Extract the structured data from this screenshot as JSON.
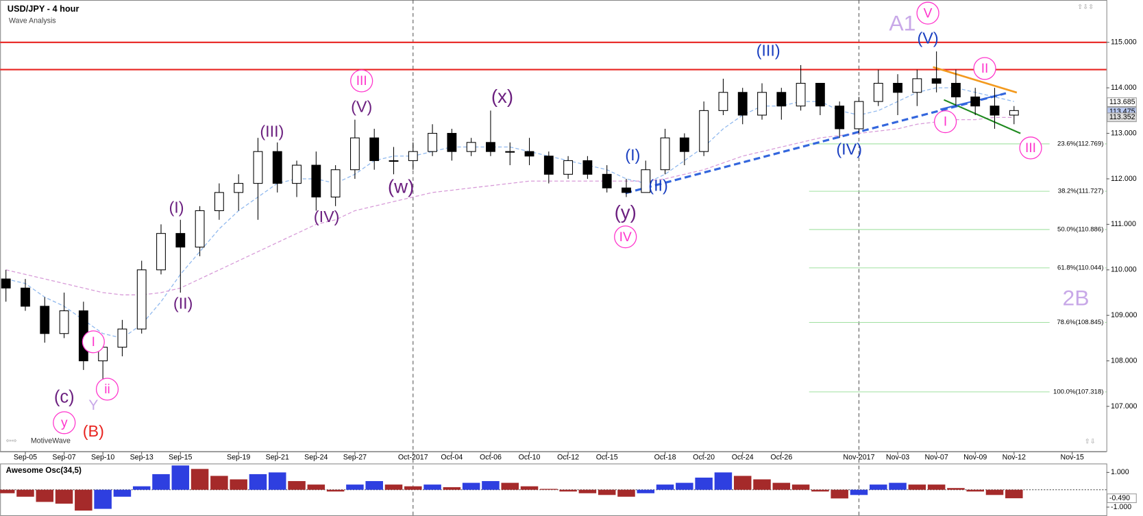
{
  "chart_data": {
    "type": "candlestick",
    "title": "USD/JPY - 4 hour",
    "subtitle": "Wave Analysis",
    "watermark": "MotiveWave",
    "categories": [
      null,
      "Sep-05",
      null,
      "Sep-07",
      null,
      "Sep-10",
      null,
      "Sep-13",
      null,
      "Sep-15",
      null,
      null,
      "Sep-19",
      null,
      "Sep-21",
      null,
      "Sep-24",
      null,
      "Sep-27",
      null,
      null,
      "Oct-2017",
      null,
      "Oct-04",
      null,
      "Oct-06",
      null,
      "Oct-10",
      null,
      "Oct-12",
      null,
      "Oct-15",
      null,
      null,
      "Oct-18",
      null,
      "Oct-20",
      null,
      "Oct-24",
      null,
      "Oct-26",
      null,
      null,
      null,
      "Nov-2017",
      null,
      "Nov-03",
      null,
      "Nov-07",
      null,
      "Nov-09",
      null,
      "Nov-12",
      null,
      null,
      "Nov-15"
    ],
    "ohlc": [
      [
        109.8,
        110.0,
        109.3,
        109.6
      ],
      [
        109.6,
        109.8,
        109.1,
        109.2
      ],
      [
        109.2,
        109.4,
        108.4,
        108.6
      ],
      [
        108.6,
        109.5,
        108.5,
        109.1
      ],
      [
        109.1,
        109.3,
        107.8,
        108.0
      ],
      [
        108.0,
        108.5,
        107.2,
        108.3
      ],
      [
        108.3,
        108.9,
        108.1,
        108.7
      ],
      [
        108.7,
        110.2,
        108.6,
        110.0
      ],
      [
        110.0,
        111.0,
        109.9,
        110.8
      ],
      [
        110.8,
        111.1,
        109.5,
        110.5
      ],
      [
        110.5,
        111.4,
        110.3,
        111.3
      ],
      [
        111.3,
        111.9,
        111.1,
        111.7
      ],
      [
        111.7,
        112.1,
        111.3,
        111.9
      ],
      [
        111.9,
        112.9,
        111.1,
        112.6
      ],
      [
        112.6,
        112.8,
        111.7,
        111.9
      ],
      [
        111.9,
        112.4,
        111.6,
        112.3
      ],
      [
        112.3,
        112.6,
        111.3,
        111.6
      ],
      [
        111.6,
        112.3,
        111.4,
        112.2
      ],
      [
        112.2,
        113.3,
        112.0,
        112.9
      ],
      [
        112.9,
        113.1,
        112.2,
        112.4
      ],
      [
        112.4,
        112.7,
        112.1,
        112.4
      ],
      [
        112.4,
        112.8,
        112.2,
        112.6
      ],
      [
        112.6,
        113.2,
        112.5,
        113.0
      ],
      [
        113.0,
        113.1,
        112.4,
        112.6
      ],
      [
        112.6,
        112.9,
        112.5,
        112.8
      ],
      [
        112.8,
        113.5,
        112.5,
        112.6
      ],
      [
        112.6,
        112.8,
        112.3,
        112.6
      ],
      [
        112.6,
        112.9,
        112.3,
        112.5
      ],
      [
        112.5,
        112.6,
        111.9,
        112.1
      ],
      [
        112.1,
        112.5,
        112.0,
        112.4
      ],
      [
        112.4,
        112.5,
        112.0,
        112.1
      ],
      [
        112.1,
        112.3,
        111.7,
        111.8
      ],
      [
        111.8,
        112.0,
        111.6,
        111.7
      ],
      [
        111.7,
        112.4,
        111.7,
        112.2
      ],
      [
        112.2,
        113.1,
        112.1,
        112.9
      ],
      [
        112.9,
        113.0,
        112.3,
        112.6
      ],
      [
        112.6,
        113.7,
        112.5,
        113.5
      ],
      [
        113.5,
        114.2,
        113.4,
        113.9
      ],
      [
        113.9,
        114.0,
        113.2,
        113.4
      ],
      [
        113.4,
        114.1,
        113.3,
        113.9
      ],
      [
        113.9,
        114.0,
        113.3,
        113.6
      ],
      [
        113.6,
        114.5,
        113.5,
        114.1
      ],
      [
        114.1,
        114.1,
        113.4,
        113.6
      ],
      [
        113.6,
        113.7,
        112.9,
        113.1
      ],
      [
        113.1,
        113.8,
        113.0,
        113.7
      ],
      [
        113.7,
        114.4,
        113.6,
        114.1
      ],
      [
        114.1,
        114.3,
        113.4,
        113.9
      ],
      [
        113.9,
        114.4,
        113.6,
        114.2
      ],
      [
        114.2,
        114.8,
        113.9,
        114.1
      ],
      [
        114.1,
        114.4,
        113.6,
        113.8
      ],
      [
        113.8,
        114.0,
        113.4,
        113.6
      ],
      [
        113.6,
        114.0,
        113.1,
        113.4
      ],
      [
        113.4,
        113.6,
        113.2,
        113.5
      ],
      null,
      null,
      null
    ],
    "moving_averages": [
      {
        "color": "#8fb8ee",
        "values": [
          109.8,
          109.7,
          109.4,
          109.2,
          108.9,
          108.6,
          108.5,
          108.8,
          109.3,
          109.9,
          110.4,
          110.9,
          111.3,
          111.6,
          111.9,
          112.0,
          112.0,
          111.9,
          112.1,
          112.4,
          112.5,
          112.5,
          112.6,
          112.7,
          112.7,
          112.7,
          112.7,
          112.6,
          112.5,
          112.4,
          112.3,
          112.2,
          112.0,
          111.9,
          112.1,
          112.4,
          112.7,
          113.1,
          113.4,
          113.6,
          113.6,
          113.7,
          113.7,
          113.5,
          113.4,
          113.5,
          113.7,
          113.9,
          114.0,
          114.0,
          113.9,
          113.8,
          113.7,
          null,
          null,
          null
        ]
      },
      {
        "color": "#d79ad8",
        "values": [
          110.0,
          109.9,
          109.8,
          109.7,
          109.6,
          109.5,
          109.45,
          109.45,
          109.5,
          109.6,
          109.8,
          110.0,
          110.2,
          110.4,
          110.6,
          110.8,
          111.0,
          111.1,
          111.3,
          111.4,
          111.5,
          111.6,
          111.7,
          111.75,
          111.8,
          111.85,
          111.9,
          111.95,
          111.95,
          111.95,
          111.95,
          111.95,
          111.95,
          111.95,
          112.0,
          112.1,
          112.2,
          112.35,
          112.5,
          112.6,
          112.7,
          112.8,
          112.9,
          112.95,
          113.0,
          113.05,
          113.1,
          113.2,
          113.25,
          113.3,
          113.3,
          113.35,
          113.35,
          null,
          null,
          null
        ]
      }
    ],
    "ylim": [
      106.0,
      115.93
    ],
    "yticks": [
      {
        "value": 107,
        "label": "107.000"
      },
      {
        "value": 108,
        "label": "108.000"
      },
      {
        "value": 109,
        "label": "109.000"
      },
      {
        "value": 110,
        "label": "110.000"
      },
      {
        "value": 111,
        "label": "111.000"
      },
      {
        "value": 112,
        "label": "112.000"
      },
      {
        "value": 113,
        "label": "113.000"
      },
      {
        "value": 114,
        "label": "114.000"
      },
      {
        "value": 115,
        "label": "115.000"
      }
    ],
    "horizontal_levels": {
      "color": "#e8231f",
      "values": [
        115.0,
        114.4
      ]
    },
    "fib_levels": {
      "color": "#9fe09f",
      "values": [
        {
          "value": 112.769,
          "label": "23.6%(112.769)"
        },
        {
          "value": 111.727,
          "label": "38.2%(111.727)"
        },
        {
          "value": 110.886,
          "label": "50.0%(110.886)"
        },
        {
          "value": 110.044,
          "label": "61.8%(110.044)"
        },
        {
          "value": 108.845,
          "label": "78.6%(108.845)"
        },
        {
          "value": 107.318,
          "label": "100.0%(107.318)"
        }
      ]
    },
    "price_markers": [
      {
        "value": 113.685,
        "label": "113.685",
        "color": "#ffffff"
      },
      {
        "value": 113.475,
        "label": "113.475",
        "color": "#b8c8f0"
      },
      {
        "value": 113.352,
        "label": "113.352",
        "color": "#dddddd"
      }
    ],
    "annotations": [
      {
        "text": "A1",
        "color": "#c8a8e8",
        "circled": false
      },
      {
        "text": "V",
        "color": "#ff33cc",
        "circled": true
      },
      {
        "text": "(V)",
        "color": "#1a3fc0",
        "circled": false
      },
      {
        "text": "(III)",
        "color": "#1a3fc0",
        "circled": false
      },
      {
        "text": "II",
        "color": "#ff33cc",
        "circled": true
      },
      {
        "text": "I",
        "color": "#ff33cc",
        "circled": true
      },
      {
        "text": "III",
        "color": "#ff33cc",
        "circled": true
      },
      {
        "text": "(IV)",
        "color": "#1a3fc0",
        "circled": false
      },
      {
        "text": "(I)",
        "color": "#1a3fc0",
        "circled": false
      },
      {
        "text": "(II)",
        "color": "#1a3fc0",
        "circled": false
      },
      {
        "text": "(y)",
        "color": "#6b1f7f",
        "circled": false
      },
      {
        "text": "IV",
        "color": "#ff33cc",
        "circled": true
      },
      {
        "text": "(x)",
        "color": "#6b1f7f",
        "circled": false
      },
      {
        "text": "(w)",
        "color": "#6b1f7f",
        "circled": false
      },
      {
        "text": "III",
        "color": "#ff33cc",
        "circled": true
      },
      {
        "text": "(V)",
        "color": "#6b1f7f",
        "circled": false
      },
      {
        "text": "(III)",
        "color": "#6b1f7f",
        "circled": false
      },
      {
        "text": "(IV)",
        "color": "#6b1f7f",
        "circled": false
      },
      {
        "text": "(I)",
        "color": "#6b1f7f",
        "circled": false
      },
      {
        "text": "(II)",
        "color": "#6b1f7f",
        "circled": false
      },
      {
        "text": "I",
        "color": "#ff33cc",
        "circled": true
      },
      {
        "text": "ii",
        "color": "#ff33cc",
        "circled": true
      },
      {
        "text": "(c)",
        "color": "#6b1f7f",
        "circled": false
      },
      {
        "text": "Y",
        "color": "#c8a8e8",
        "circled": false
      },
      {
        "text": "y",
        "color": "#ff33cc",
        "circled": true
      },
      {
        "text": "(B)",
        "color": "#e8231f",
        "circled": false
      },
      {
        "text": "2B",
        "color": "#c8a8e8",
        "circled": false
      }
    ],
    "oscillator": {
      "title": "Awesome Osc(34,5)",
      "up_color": "#2e3fe0",
      "down_color": "#a52a2a",
      "values": [
        -0.2,
        -0.4,
        -0.7,
        -0.8,
        -1.2,
        -1.1,
        -0.4,
        0.2,
        0.9,
        1.4,
        1.2,
        0.8,
        0.6,
        0.9,
        1.0,
        0.5,
        0.3,
        -0.1,
        0.3,
        0.5,
        0.3,
        0.2,
        0.3,
        0.15,
        0.4,
        0.5,
        0.4,
        0.2,
        0.05,
        -0.1,
        -0.2,
        -0.3,
        -0.4,
        -0.2,
        0.3,
        0.4,
        0.7,
        1.0,
        0.8,
        0.6,
        0.4,
        0.3,
        -0.1,
        -0.5,
        -0.3,
        0.3,
        0.4,
        0.3,
        0.3,
        0.1,
        -0.1,
        -0.3,
        -0.49,
        null,
        null,
        null
      ],
      "ylim": [
        -1.47,
        1.47
      ],
      "yticks": [
        {
          "value": 1,
          "label": "1.000"
        },
        {
          "value": -1,
          "label": "-1.000"
        }
      ],
      "current": {
        "value": -0.49,
        "label": "-0.490"
      }
    }
  }
}
